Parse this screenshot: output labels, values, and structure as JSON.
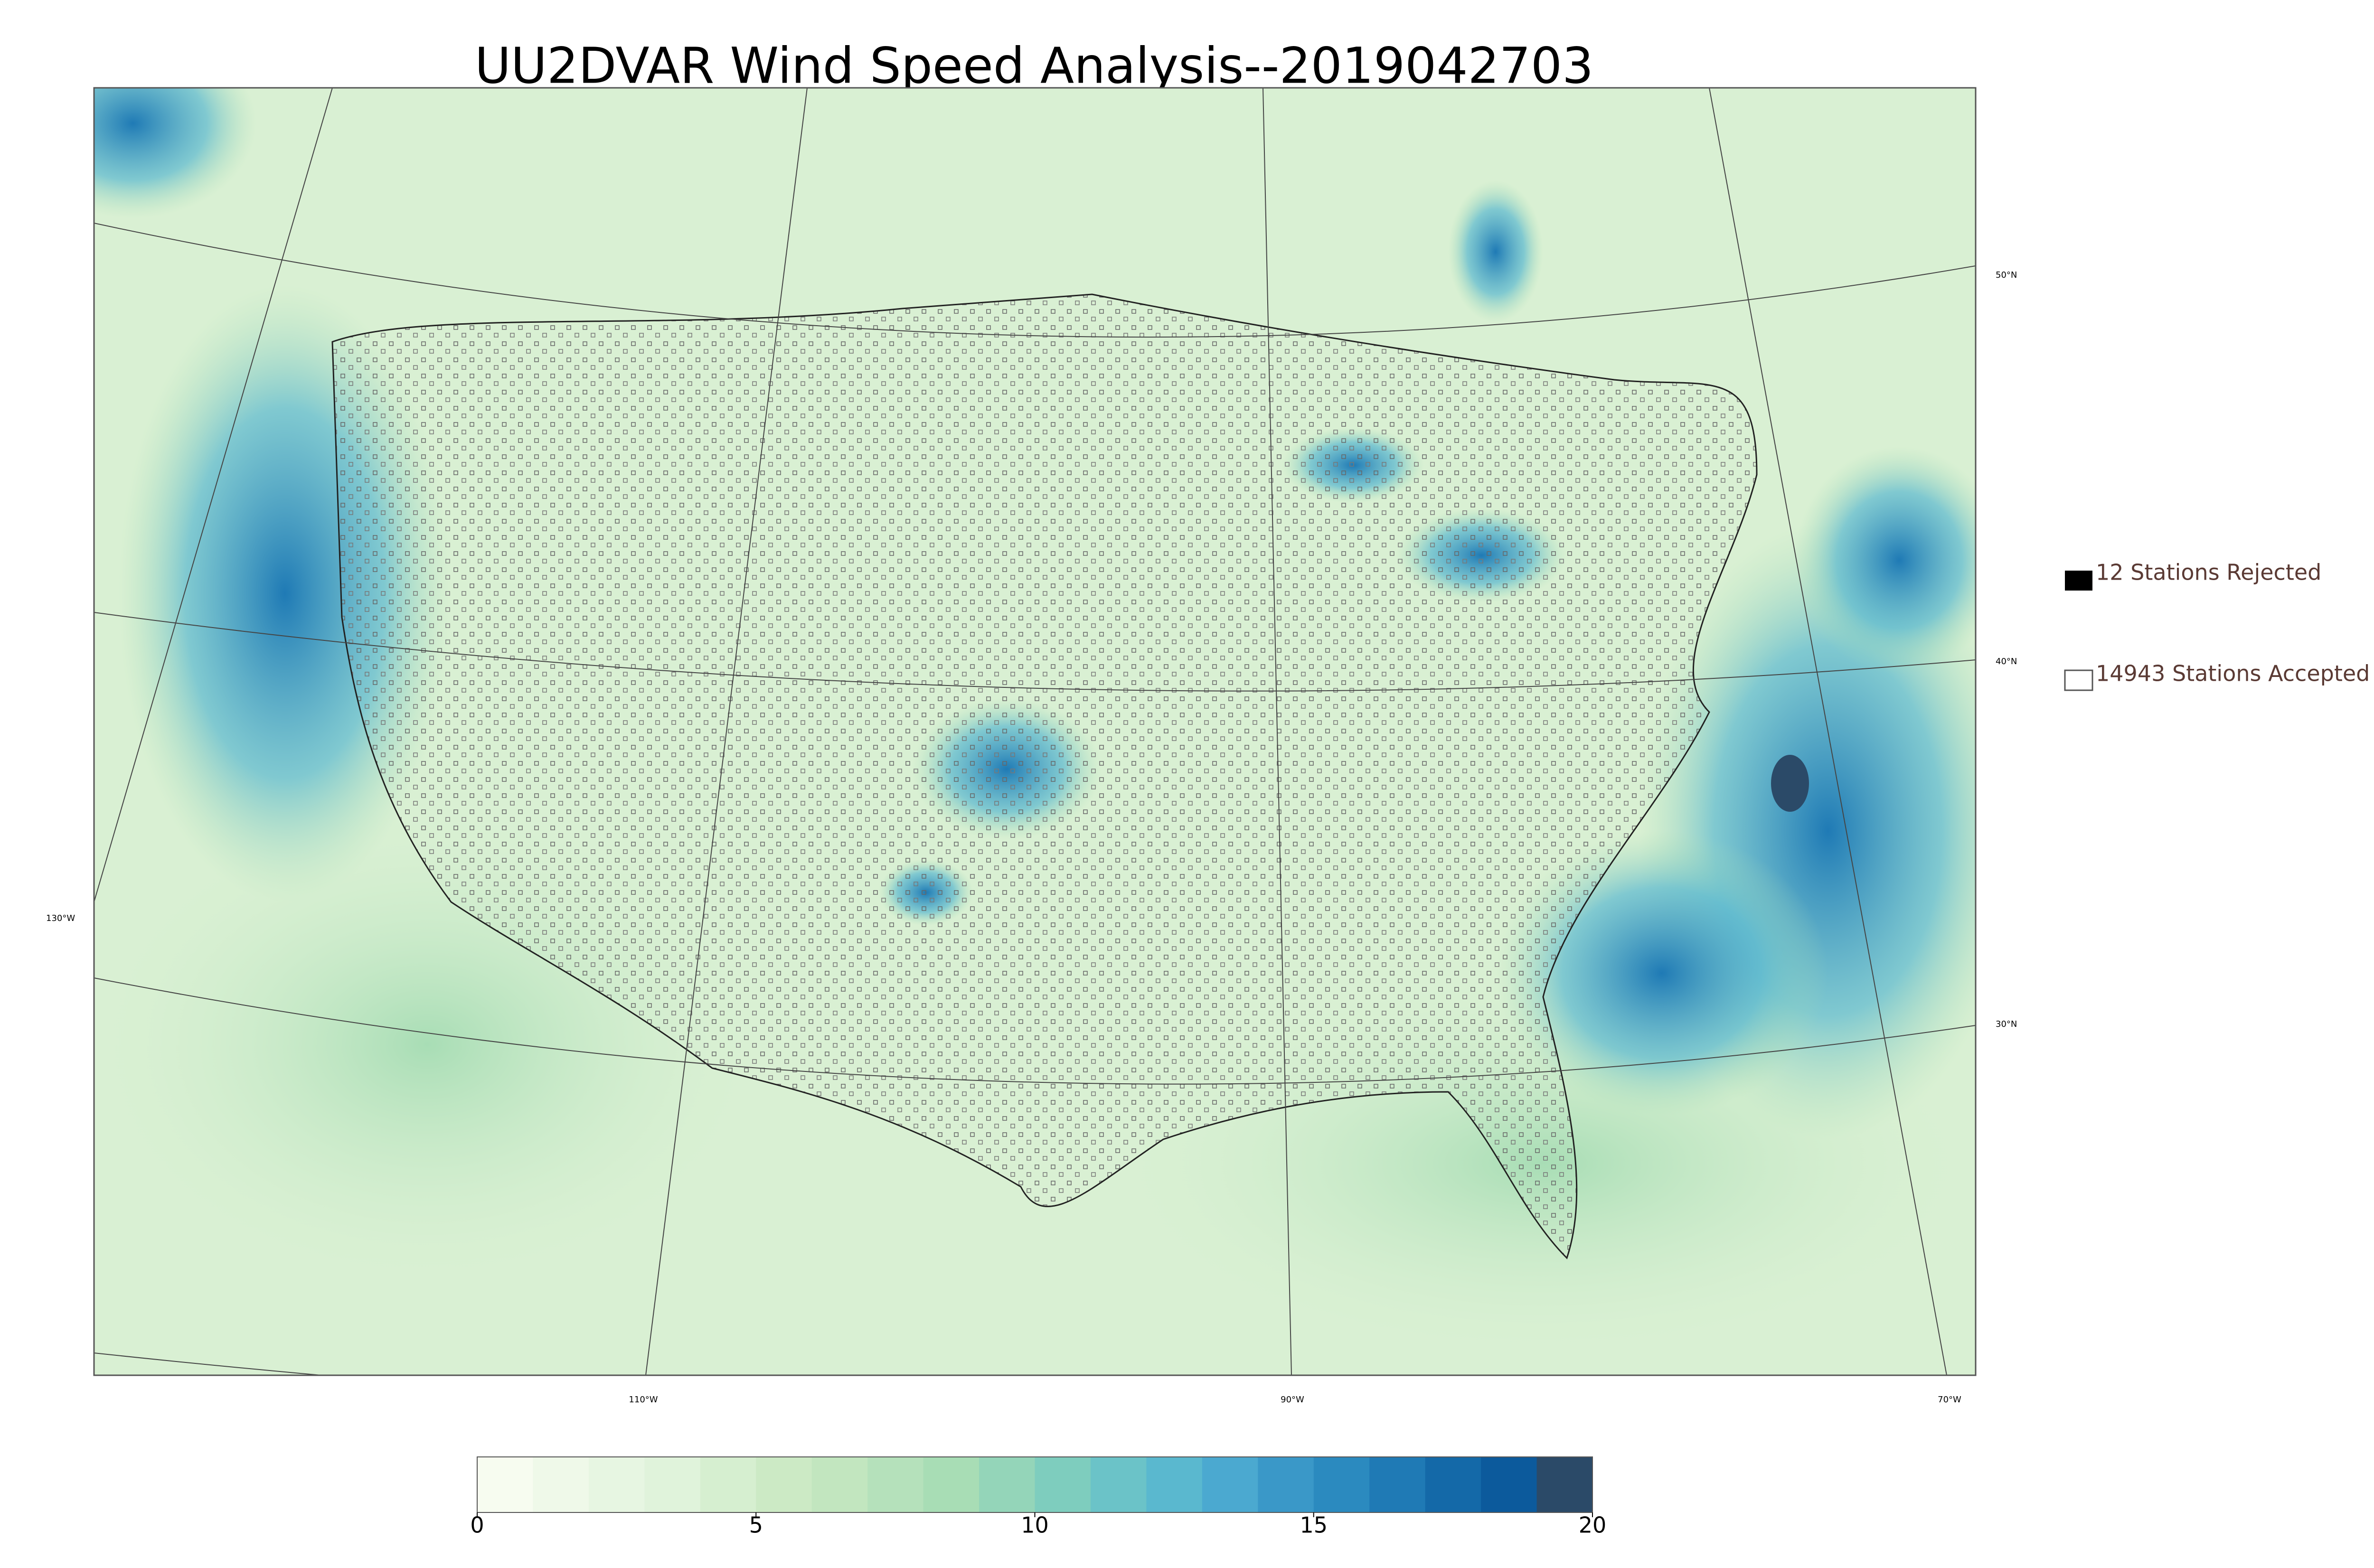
{
  "title": "UU2DVAR Wind Speed Analysis--2019042703",
  "legend": {
    "rejected": "12 Stations Rejected",
    "accepted": "14943 Stations Accepted"
  },
  "latitude_labels": [
    "50°N",
    "40°N",
    "30°N"
  ],
  "longitude_labels": [
    "130°W",
    "110°W",
    "90°W",
    "70°W"
  ],
  "colorbar": {
    "lim": [
      0,
      20
    ],
    "ticks": [
      0,
      5,
      10,
      15,
      20
    ],
    "colors": [
      "#f7fcf0",
      "#eff9e9",
      "#e7f6e2",
      "#e0f3db",
      "#d6efd0",
      "#cceac5",
      "#c2e6bf",
      "#b5e1bb",
      "#a8ddb5",
      "#94d5b9",
      "#7ecdbe",
      "#6bc3c8",
      "#5ab8cf",
      "#4ba9d0",
      "#3a98c8",
      "#2b8abf",
      "#1f7ab5",
      "#1469a8",
      "#0c5a9c",
      "#2b4a68"
    ]
  }
}
